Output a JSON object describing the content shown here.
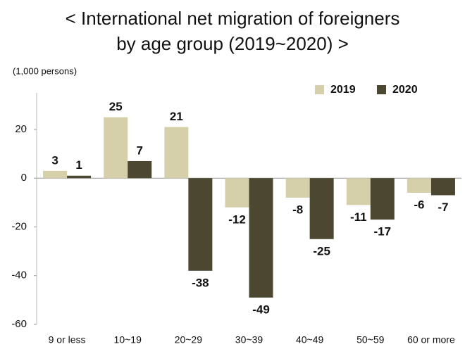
{
  "chart_data": {
    "type": "bar",
    "title": [
      "< International net migration of foreigners",
      "by age group (2019~2020) >"
    ],
    "y_label": "(1,000 persons)",
    "categories": [
      "9 or less",
      "10~19",
      "20~29",
      "30~39",
      "40~49",
      "50~59",
      "60 or more"
    ],
    "series": [
      {
        "name": "2019",
        "color": "#d5d0aa",
        "values": [
          3,
          25,
          21,
          -12,
          -8,
          -11,
          -6
        ]
      },
      {
        "name": "2020",
        "color": "#4b4731",
        "values": [
          1,
          7,
          -38,
          -49,
          -25,
          -17,
          -7
        ]
      }
    ],
    "ylim": [
      -60,
      35
    ],
    "yticks": [
      -60,
      -40,
      -20,
      0,
      20
    ],
    "grid": false,
    "legend": "top-right"
  }
}
